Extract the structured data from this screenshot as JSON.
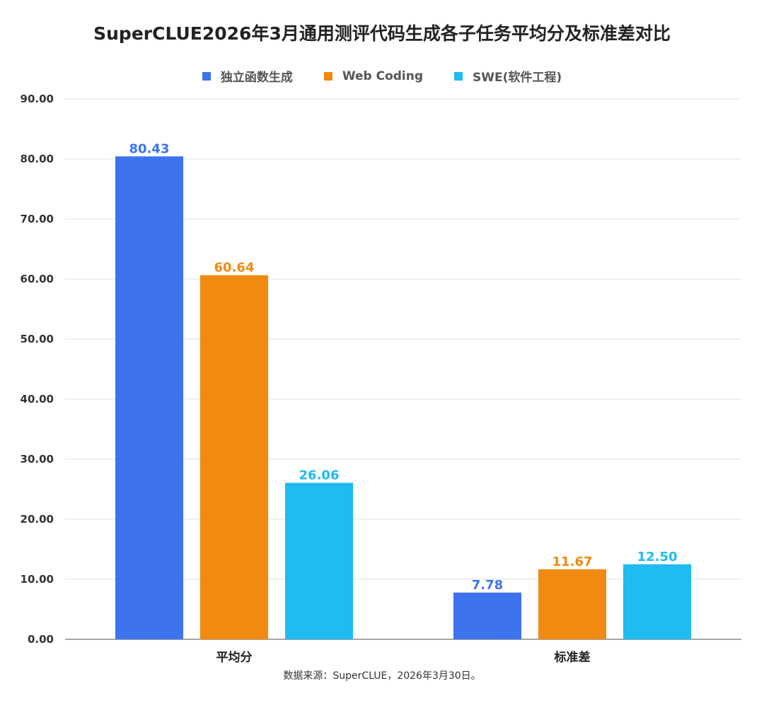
{
  "chart_data": {
    "type": "bar",
    "title": "SuperCLUE2026年3月通用测评代码生成各子任务平均分及标准差对比",
    "categories": [
      "平均分",
      "标准差"
    ],
    "series": [
      {
        "name": "独立函数生成",
        "values": [
          80.43,
          7.78
        ],
        "color": "#3d73ee",
        "labels": [
          "80.43",
          "7.78"
        ]
      },
      {
        "name": "Web Coding",
        "values": [
          60.64,
          11.67
        ],
        "color": "#f08a11",
        "labels": [
          "60.64",
          "11.67"
        ]
      },
      {
        "name": "SWE(软件工程)",
        "values": [
          26.06,
          12.5
        ],
        "color": "#20bbf0",
        "labels": [
          "26.06",
          "12.50"
        ]
      }
    ],
    "ylim": [
      0,
      90
    ],
    "yticks": [
      "0.00",
      "10.00",
      "20.00",
      "30.00",
      "40.00",
      "50.00",
      "60.00",
      "70.00",
      "80.00",
      "90.00"
    ],
    "grid": true,
    "legend_position": "top-center"
  },
  "source_note": "数据来源：SuperCLUE，2026年3月30日。"
}
